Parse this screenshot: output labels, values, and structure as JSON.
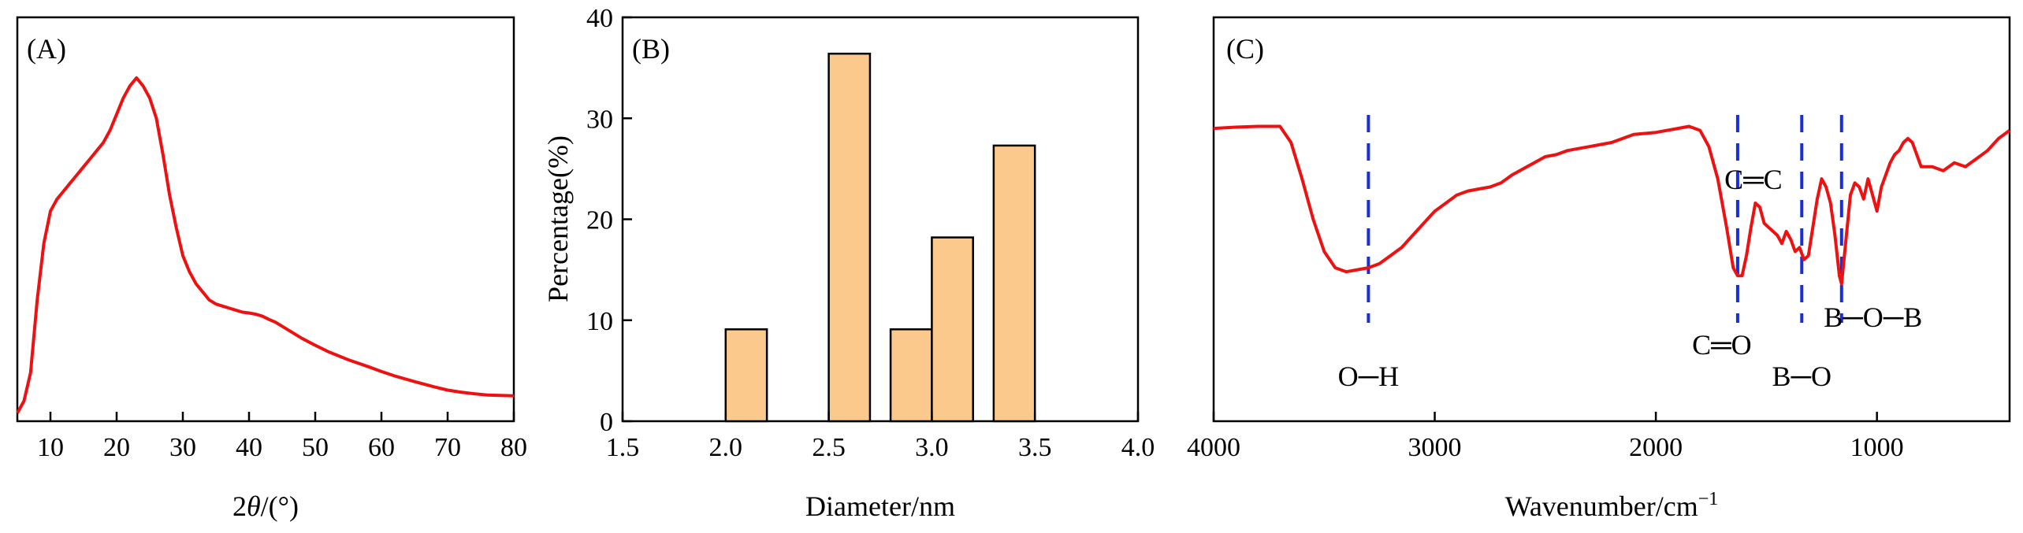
{
  "chart_data": [
    {
      "panel_label": "(A)",
      "type": "line",
      "xlabel_prefix": "2",
      "xlabel_theta": "θ",
      "xlabel_suffix": "/(°)",
      "ylabel": "",
      "xlim": [
        5,
        80
      ],
      "ylim": [
        0,
        1
      ],
      "xticks": [
        10,
        20,
        30,
        40,
        50,
        60,
        70,
        80
      ],
      "yticks": [],
      "color": "#ee1111",
      "series": [
        {
          "x": [
            5,
            6,
            7,
            8,
            9,
            10,
            11,
            12,
            13,
            14,
            15,
            16,
            17,
            18,
            19,
            20,
            21,
            22,
            23,
            24,
            25,
            26,
            27,
            28,
            29,
            30,
            31,
            32,
            33,
            34,
            35,
            36,
            37,
            38,
            39,
            40,
            41,
            42,
            43,
            44,
            45,
            46,
            48,
            50,
            52,
            55,
            58,
            60,
            62,
            65,
            68,
            70,
            72,
            74,
            76,
            78,
            80
          ],
          "y": [
            0.02,
            0.05,
            0.12,
            0.3,
            0.44,
            0.52,
            0.55,
            0.57,
            0.59,
            0.61,
            0.63,
            0.65,
            0.67,
            0.69,
            0.72,
            0.76,
            0.8,
            0.83,
            0.85,
            0.83,
            0.8,
            0.75,
            0.66,
            0.56,
            0.48,
            0.41,
            0.37,
            0.34,
            0.32,
            0.3,
            0.29,
            0.285,
            0.28,
            0.275,
            0.27,
            0.268,
            0.265,
            0.26,
            0.252,
            0.245,
            0.235,
            0.225,
            0.205,
            0.188,
            0.172,
            0.152,
            0.135,
            0.123,
            0.112,
            0.098,
            0.085,
            0.077,
            0.072,
            0.068,
            0.065,
            0.064,
            0.063
          ]
        }
      ]
    },
    {
      "panel_label": "(B)",
      "type": "bar",
      "xlabel": "Diameter/nm",
      "ylabel": "Percentage(%)",
      "xlim": [
        1.5,
        4.0
      ],
      "ylim": [
        0,
        40
      ],
      "xticks": [
        "1.5",
        "2.0",
        "2.5",
        "3.0",
        "3.5",
        "4.0"
      ],
      "yticks": [
        0,
        10,
        20,
        30,
        40
      ],
      "bar_width": 0.2,
      "color": "#fcc98c",
      "categories": [
        2.1,
        2.6,
        2.9,
        3.1,
        3.4
      ],
      "values": [
        9.1,
        36.4,
        9.1,
        18.2,
        27.3
      ]
    },
    {
      "panel_label": "(C)",
      "type": "line",
      "xlabel": "Wavenumber/cm",
      "xlabel_superscript": "−1",
      "ylabel": "",
      "xlim": [
        4000,
        400
      ],
      "ylim": [
        0,
        1
      ],
      "xticks": [
        4000,
        3000,
        2000,
        1000
      ],
      "yticks": [],
      "color": "#ee1111",
      "series": [
        {
          "x": [
            4000,
            3900,
            3800,
            3700,
            3650,
            3600,
            3550,
            3500,
            3450,
            3400,
            3350,
            3300,
            3250,
            3200,
            3150,
            3100,
            3050,
            3000,
            2950,
            2900,
            2850,
            2800,
            2750,
            2700,
            2650,
            2600,
            2550,
            2500,
            2450,
            2400,
            2350,
            2300,
            2200,
            2100,
            2000,
            1900,
            1850,
            1800,
            1760,
            1720,
            1680,
            1650,
            1630,
            1610,
            1590,
            1570,
            1550,
            1530,
            1510,
            1490,
            1470,
            1450,
            1430,
            1410,
            1390,
            1370,
            1350,
            1330,
            1310,
            1290,
            1270,
            1250,
            1230,
            1210,
            1190,
            1170,
            1160,
            1140,
            1120,
            1100,
            1080,
            1060,
            1040,
            1020,
            1000,
            980,
            960,
            940,
            920,
            900,
            880,
            860,
            840,
            820,
            800,
            750,
            700,
            650,
            600,
            550,
            500,
            450,
            400
          ],
          "y": [
            0.725,
            0.728,
            0.73,
            0.73,
            0.69,
            0.6,
            0.5,
            0.42,
            0.38,
            0.37,
            0.375,
            0.38,
            0.39,
            0.41,
            0.43,
            0.46,
            0.49,
            0.52,
            0.54,
            0.56,
            0.57,
            0.575,
            0.58,
            0.59,
            0.61,
            0.625,
            0.64,
            0.655,
            0.66,
            0.67,
            0.675,
            0.68,
            0.69,
            0.71,
            0.715,
            0.725,
            0.73,
            0.72,
            0.68,
            0.6,
            0.48,
            0.38,
            0.36,
            0.36,
            0.41,
            0.48,
            0.54,
            0.53,
            0.49,
            0.48,
            0.47,
            0.46,
            0.44,
            0.47,
            0.45,
            0.42,
            0.43,
            0.4,
            0.41,
            0.48,
            0.55,
            0.6,
            0.58,
            0.54,
            0.46,
            0.36,
            0.34,
            0.45,
            0.56,
            0.59,
            0.58,
            0.55,
            0.6,
            0.56,
            0.52,
            0.58,
            0.61,
            0.64,
            0.66,
            0.67,
            0.69,
            0.7,
            0.69,
            0.66,
            0.63,
            0.63,
            0.62,
            0.64,
            0.63,
            0.65,
            0.67,
            0.7,
            0.72
          ]
        }
      ],
      "annotations": [
        {
          "label": "O─H",
          "wavenumber": 3300
        },
        {
          "label": "C═O",
          "wavenumber": 1630
        },
        {
          "label": "C═C",
          "wavenumber": 1630
        },
        {
          "label": "B─O",
          "wavenumber": 1340
        },
        {
          "label": "B─O─B",
          "wavenumber": 1160
        }
      ],
      "marker_color": "#1a2ed8"
    }
  ]
}
